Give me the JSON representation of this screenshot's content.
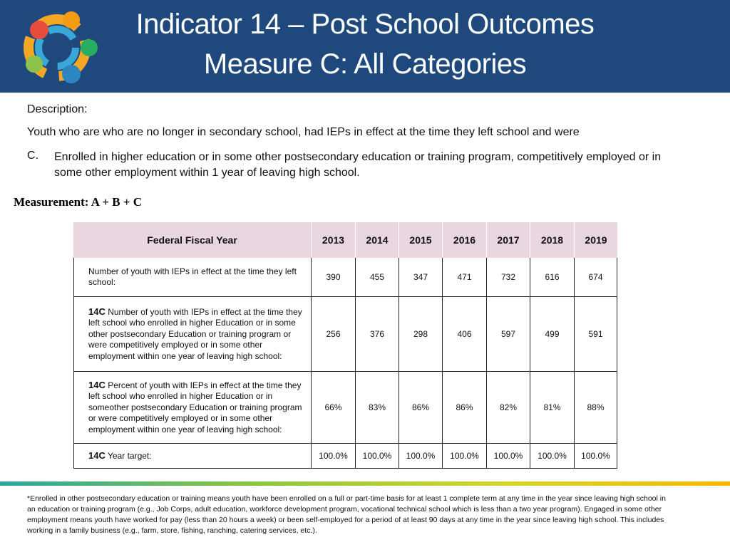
{
  "header": {
    "title_line1": "Indicator 14 – Post School Outcomes",
    "title_line2": "Measure C: All Categories"
  },
  "description": {
    "label": "Description:",
    "intro": "Youth who are who are no longer in secondary school, had IEPs in effect at the time they left school and were",
    "item_marker": "C.",
    "item_text": "Enrolled in higher education or in some other postsecondary education or training program, competitively employed or in some other employment within 1 year of leaving high school."
  },
  "measurement": "Measurement: A + B + C",
  "table": {
    "header": [
      "Federal Fiscal Year",
      "2013",
      "2014",
      "2015",
      "2016",
      "2017",
      "2018",
      "2019"
    ],
    "rows": [
      {
        "prefix": null,
        "label": "Number of youth with IEPs in effect at the time they left school:",
        "values": [
          "390",
          "455",
          "347",
          "471",
          "732",
          "616",
          "674"
        ]
      },
      {
        "prefix": "14C",
        "label": "Number of youth with IEPs in effect at the time they left school who enrolled in higher Education or in some other postsecondary Education or training program or were competitively employed or in some other employment within one year of leaving high school:",
        "values": [
          "256",
          "376",
          "298",
          "406",
          "597",
          "499",
          "591"
        ]
      },
      {
        "prefix": "14C",
        "label": "Percent of youth with IEPs in effect at the time they left school who enrolled in higher Education or in someother postsecondary Education or training program or were competitively employed or in some other employment within one year of leaving high school:",
        "values": [
          "66%",
          "83%",
          "86%",
          "86%",
          "82%",
          "81%",
          "88%"
        ]
      },
      {
        "prefix": "14C",
        "label": "Year target:",
        "values": [
          "100.0%",
          "100.0%",
          "100.0%",
          "100.0%",
          "100.0%",
          "100.0%",
          "100.0%"
        ]
      }
    ]
  },
  "footnote": "*Enrolled in other postsecondary education or training means youth have been enrolled on a full or part-time basis for at least 1 complete term at any time in the year since leaving high school in an education or training program (e.g., Job Corps, adult education, workforce development program, vocational technical school which is less than a two year program). Engaged in some other employment means youth have worked for pay (less than 20 hours a week) or been self-employed for a period of at least 90 days at any time in the year since leaving high school. This includes working in a family business (e.g., farm, store, fishing, ranching, catering services, etc.)."
}
